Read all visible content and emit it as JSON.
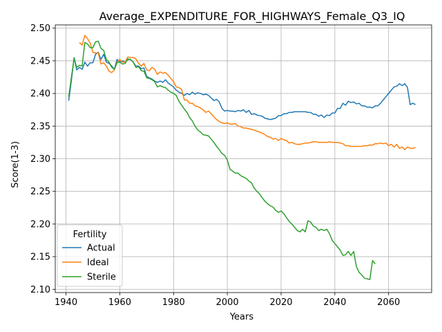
{
  "chart_data": {
    "type": "line",
    "title": "Average_EXPENDITURE_FOR_HIGHWAYS_Female_Q3_IQ",
    "xlabel": "Years",
    "ylabel": "Score(1-3)",
    "xlim": [
      1936,
      2076
    ],
    "ylim": [
      2.095,
      2.505
    ],
    "xticks": [
      1940,
      1960,
      1980,
      2000,
      2020,
      2040,
      2060
    ],
    "yticks": [
      2.1,
      2.15,
      2.2,
      2.25,
      2.3,
      2.35,
      2.4,
      2.45,
      2.5
    ],
    "grid": true,
    "legend": {
      "title": "Fertility",
      "position": "bottom-left"
    },
    "series": [
      {
        "name": "Actual",
        "color": "#1f77b4",
        "x": [
          1941,
          1942,
          1943,
          1944,
          1945,
          1946,
          1947,
          1948,
          1949,
          1950,
          1951,
          1952,
          1953,
          1954,
          1955,
          1956,
          1957,
          1958,
          1959,
          1960,
          1961,
          1962,
          1963,
          1964,
          1965,
          1966,
          1967,
          1968,
          1969,
          1970,
          1971,
          1972,
          1973,
          1974,
          1975,
          1976,
          1977,
          1978,
          1979,
          1980,
          1981,
          1982,
          1983,
          1984,
          1985,
          1986,
          1987,
          1988,
          1989,
          1990,
          1991,
          1992,
          1993,
          1994,
          1995,
          1996,
          1997,
          1998,
          1999,
          2000,
          2001,
          2002,
          2003,
          2004,
          2005,
          2006,
          2007,
          2008,
          2009,
          2010,
          2011,
          2012,
          2013,
          2014,
          2015,
          2016,
          2017,
          2018,
          2019,
          2020,
          2021,
          2022,
          2023,
          2024,
          2025,
          2026,
          2027,
          2028,
          2029,
          2030,
          2031,
          2032,
          2033,
          2034,
          2035,
          2036,
          2037,
          2038,
          2039,
          2040,
          2041,
          2042,
          2043,
          2044,
          2045,
          2046,
          2047,
          2048,
          2049,
          2050,
          2051,
          2052,
          2053,
          2054,
          2055,
          2056,
          2057,
          2058,
          2059,
          2060,
          2061,
          2062,
          2063,
          2064,
          2065,
          2066,
          2067,
          2068,
          2069,
          2070
        ],
        "values": [
          2.389,
          2.42,
          2.455,
          2.436,
          2.44,
          2.437,
          2.448,
          2.442,
          2.447,
          2.447,
          2.46,
          2.463,
          2.452,
          2.46,
          2.448,
          2.446,
          2.442,
          2.437,
          2.452,
          2.448,
          2.45,
          2.448,
          2.452,
          2.452,
          2.448,
          2.442,
          2.442,
          2.438,
          2.439,
          2.426,
          2.424,
          2.422,
          2.419,
          2.417,
          2.419,
          2.417,
          2.421,
          2.416,
          2.413,
          2.41,
          2.405,
          2.402,
          2.4,
          2.397,
          2.4,
          2.398,
          2.402,
          2.399,
          2.401,
          2.4,
          2.398,
          2.399,
          2.397,
          2.393,
          2.389,
          2.391,
          2.387,
          2.377,
          2.373,
          2.374,
          2.373,
          2.373,
          2.372,
          2.374,
          2.373,
          2.375,
          2.371,
          2.374,
          2.368,
          2.369,
          2.367,
          2.366,
          2.365,
          2.362,
          2.361,
          2.36,
          2.361,
          2.362,
          2.366,
          2.366,
          2.369,
          2.369,
          2.371,
          2.371,
          2.372,
          2.372,
          2.372,
          2.372,
          2.372,
          2.371,
          2.371,
          2.368,
          2.368,
          2.365,
          2.367,
          2.363,
          2.367,
          2.366,
          2.37,
          2.37,
          2.377,
          2.377,
          2.385,
          2.382,
          2.388,
          2.386,
          2.387,
          2.384,
          2.385,
          2.381,
          2.381,
          2.379,
          2.379,
          2.378,
          2.381,
          2.381,
          2.385,
          2.39,
          2.395,
          2.4,
          2.405,
          2.41,
          2.411,
          2.415,
          2.412,
          2.415,
          2.409,
          2.383,
          2.385,
          2.383
        ]
      },
      {
        "name": "Ideal",
        "color": "#ff7f0e",
        "x": [
          1945,
          1946,
          1947,
          1948,
          1949,
          1950,
          1951,
          1952,
          1953,
          1954,
          1955,
          1956,
          1957,
          1958,
          1959,
          1960,
          1961,
          1962,
          1963,
          1964,
          1965,
          1966,
          1967,
          1968,
          1969,
          1970,
          1971,
          1972,
          1973,
          1974,
          1975,
          1976,
          1977,
          1978,
          1979,
          1980,
          1981,
          1982,
          1983,
          1984,
          1985,
          1986,
          1987,
          1988,
          1989,
          1990,
          1991,
          1992,
          1993,
          1994,
          1995,
          1996,
          1997,
          1998,
          1999,
          2000,
          2001,
          2002,
          2003,
          2004,
          2005,
          2006,
          2007,
          2008,
          2009,
          2010,
          2011,
          2012,
          2013,
          2014,
          2015,
          2016,
          2017,
          2018,
          2019,
          2020,
          2021,
          2022,
          2023,
          2024,
          2025,
          2026,
          2027,
          2028,
          2029,
          2030,
          2031,
          2032,
          2033,
          2034,
          2035,
          2036,
          2037,
          2038,
          2039,
          2040,
          2041,
          2042,
          2043,
          2044,
          2045,
          2046,
          2047,
          2048,
          2049,
          2050,
          2051,
          2052,
          2053,
          2054,
          2055,
          2056,
          2057,
          2058,
          2059,
          2060,
          2061,
          2062,
          2063,
          2064,
          2065,
          2066,
          2067,
          2068,
          2069,
          2070
        ],
        "values": [
          2.478,
          2.474,
          2.489,
          2.484,
          2.477,
          2.463,
          2.462,
          2.462,
          2.445,
          2.447,
          2.442,
          2.434,
          2.432,
          2.436,
          2.448,
          2.452,
          2.448,
          2.448,
          2.456,
          2.455,
          2.455,
          2.453,
          2.446,
          2.442,
          2.446,
          2.436,
          2.435,
          2.44,
          2.437,
          2.429,
          2.433,
          2.431,
          2.432,
          2.428,
          2.423,
          2.418,
          2.41,
          2.409,
          2.406,
          2.39,
          2.39,
          2.385,
          2.385,
          2.381,
          2.38,
          2.378,
          2.375,
          2.371,
          2.373,
          2.369,
          2.364,
          2.36,
          2.357,
          2.355,
          2.354,
          2.355,
          2.353,
          2.353,
          2.354,
          2.35,
          2.349,
          2.347,
          2.347,
          2.346,
          2.345,
          2.344,
          2.342,
          2.341,
          2.339,
          2.337,
          2.334,
          2.333,
          2.33,
          2.331,
          2.328,
          2.331,
          2.329,
          2.328,
          2.324,
          2.325,
          2.323,
          2.322,
          2.322,
          2.323,
          2.324,
          2.324,
          2.325,
          2.326,
          2.326,
          2.325,
          2.325,
          2.325,
          2.325,
          2.326,
          2.325,
          2.325,
          2.325,
          2.324,
          2.323,
          2.32,
          2.32,
          2.319,
          2.319,
          2.319,
          2.319,
          2.319,
          2.32,
          2.32,
          2.321,
          2.321,
          2.323,
          2.323,
          2.324,
          2.323,
          2.324,
          2.32,
          2.322,
          2.318,
          2.322,
          2.316,
          2.318,
          2.314,
          2.318,
          2.316,
          2.316,
          2.317
        ]
      },
      {
        "name": "Sterile",
        "color": "#2ca02c",
        "x": [
          1941,
          1942,
          1943,
          1944,
          1945,
          1946,
          1947,
          1948,
          1949,
          1950,
          1951,
          1952,
          1953,
          1954,
          1955,
          1956,
          1957,
          1958,
          1959,
          1960,
          1961,
          1962,
          1963,
          1964,
          1965,
          1966,
          1967,
          1968,
          1969,
          1970,
          1971,
          1972,
          1973,
          1974,
          1975,
          1976,
          1977,
          1978,
          1979,
          1980,
          1981,
          1982,
          1983,
          1984,
          1985,
          1986,
          1987,
          1988,
          1989,
          1990,
          1991,
          1992,
          1993,
          1994,
          1995,
          1996,
          1997,
          1998,
          1999,
          2000,
          2001,
          2002,
          2003,
          2004,
          2005,
          2006,
          2007,
          2008,
          2009,
          2010,
          2011,
          2012,
          2013,
          2014,
          2015,
          2016,
          2017,
          2018,
          2019,
          2020,
          2021,
          2022,
          2023,
          2024,
          2025,
          2026,
          2027,
          2028,
          2029,
          2030,
          2031,
          2032,
          2033,
          2034,
          2035,
          2036,
          2037,
          2038,
          2039,
          2040,
          2041,
          2042,
          2043,
          2044,
          2045,
          2046,
          2047,
          2048,
          2049,
          2050,
          2051,
          2052,
          2053,
          2054,
          2055
        ],
        "values": [
          2.395,
          2.425,
          2.454,
          2.44,
          2.443,
          2.442,
          2.478,
          2.476,
          2.47,
          2.47,
          2.479,
          2.48,
          2.469,
          2.466,
          2.452,
          2.448,
          2.44,
          2.437,
          2.447,
          2.448,
          2.445,
          2.446,
          2.453,
          2.452,
          2.448,
          2.44,
          2.441,
          2.435,
          2.434,
          2.424,
          2.423,
          2.421,
          2.418,
          2.41,
          2.412,
          2.41,
          2.409,
          2.405,
          2.402,
          2.4,
          2.397,
          2.388,
          2.382,
          2.376,
          2.371,
          2.363,
          2.358,
          2.35,
          2.344,
          2.341,
          2.337,
          2.336,
          2.335,
          2.33,
          2.325,
          2.319,
          2.314,
          2.308,
          2.305,
          2.298,
          2.284,
          2.281,
          2.278,
          2.278,
          2.274,
          2.272,
          2.27,
          2.266,
          2.263,
          2.255,
          2.25,
          2.246,
          2.24,
          2.235,
          2.231,
          2.228,
          2.226,
          2.221,
          2.218,
          2.22,
          2.216,
          2.21,
          2.204,
          2.2,
          2.195,
          2.19,
          2.188,
          2.192,
          2.188,
          2.205,
          2.203,
          2.197,
          2.195,
          2.19,
          2.192,
          2.19,
          2.192,
          2.185,
          2.175,
          2.17,
          2.165,
          2.16,
          2.152,
          2.153,
          2.158,
          2.152,
          2.158,
          2.135,
          2.126,
          2.122,
          2.117,
          2.116,
          2.115,
          2.144,
          2.139
        ]
      }
    ]
  }
}
